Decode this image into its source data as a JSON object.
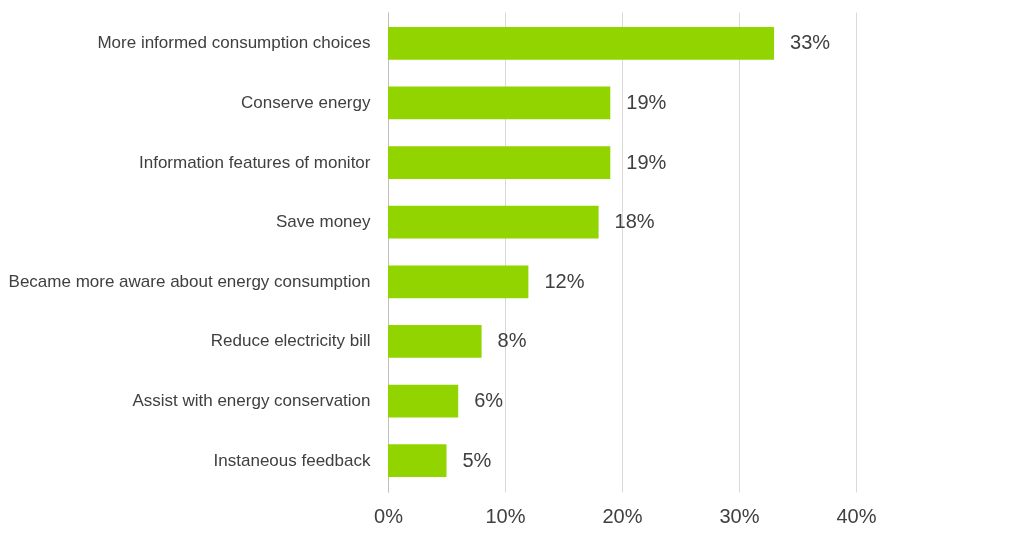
{
  "chart_data": {
    "type": "bar",
    "orientation": "horizontal",
    "categories": [
      "More informed consumption choices",
      "Conserve energy",
      "Information features of monitor",
      "Save money",
      "Became more aware about energy consumption",
      "Reduce electricity bill",
      "Assist with energy conservation",
      "Instaneous feedback"
    ],
    "values": [
      33,
      19,
      19,
      18,
      12,
      8,
      6,
      5
    ],
    "value_labels": [
      "33%",
      "19%",
      "19%",
      "18%",
      "12%",
      "8%",
      "6%",
      "5%"
    ],
    "color": "#92d400",
    "xlim": [
      0,
      40
    ],
    "xticks": [
      {
        "value": 0,
        "label": "0%"
      },
      {
        "value": 10,
        "label": "10%"
      },
      {
        "value": 20,
        "label": "20%"
      },
      {
        "value": 30,
        "label": "30%"
      },
      {
        "value": 40,
        "label": "40%"
      }
    ],
    "grid": "x"
  }
}
